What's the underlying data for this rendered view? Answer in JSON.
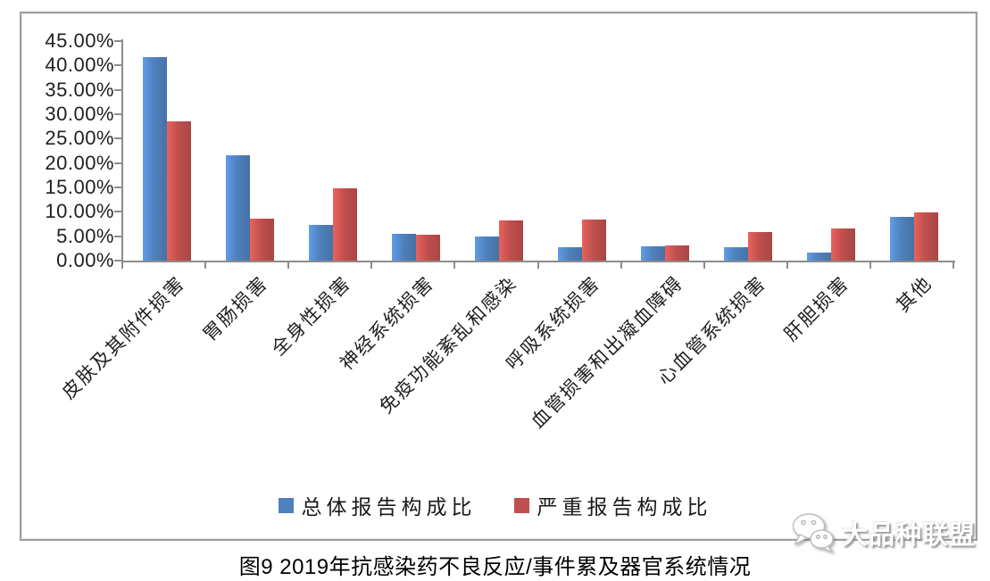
{
  "chart_data": {
    "type": "bar",
    "title": "",
    "categories": [
      "皮肤及其附件损害",
      "胃肠损害",
      "全身性损害",
      "神经系统损害",
      "免疫功能紊乱和感染",
      "呼吸系统损害",
      "血管损害和出凝血障碍",
      "心血管系统损害",
      "肝胆损害",
      "其他"
    ],
    "series": [
      {
        "name": "总体报告构成比",
        "color": "#4F81BD",
        "values": [
          41.7,
          21.5,
          7.4,
          5.4,
          4.9,
          2.8,
          2.9,
          2.7,
          1.7,
          8.9
        ]
      },
      {
        "name": "严重报告构成比",
        "color": "#C0504D",
        "values": [
          28.5,
          8.6,
          14.9,
          5.3,
          8.2,
          8.5,
          3.2,
          5.8,
          6.5,
          9.8
        ]
      }
    ],
    "y_axis": {
      "min": 0,
      "max": 45,
      "step": 5,
      "tick_labels": [
        "0.00%",
        "5.00%",
        "10.00%",
        "15.00%",
        "20.00%",
        "25.00%",
        "30.00%",
        "35.00%",
        "40.00%",
        "45.00%"
      ]
    },
    "xlabel": "",
    "ylabel": "",
    "gridlines": false,
    "legend_position": "bottom",
    "x_label_rotation_deg": 45
  },
  "caption": "图9 2019年抗感染药不良反应/事件累及器官系统情况",
  "watermark": {
    "text": "大品种联盟",
    "icon": "wechat-chat-bubbles-icon"
  },
  "colors": {
    "bar_overall": "#4F81BD",
    "bar_serious": "#C0504D",
    "axis": "#8C8C8C",
    "chart_border": "#9E9E9E",
    "text": "#1F1F1F"
  }
}
